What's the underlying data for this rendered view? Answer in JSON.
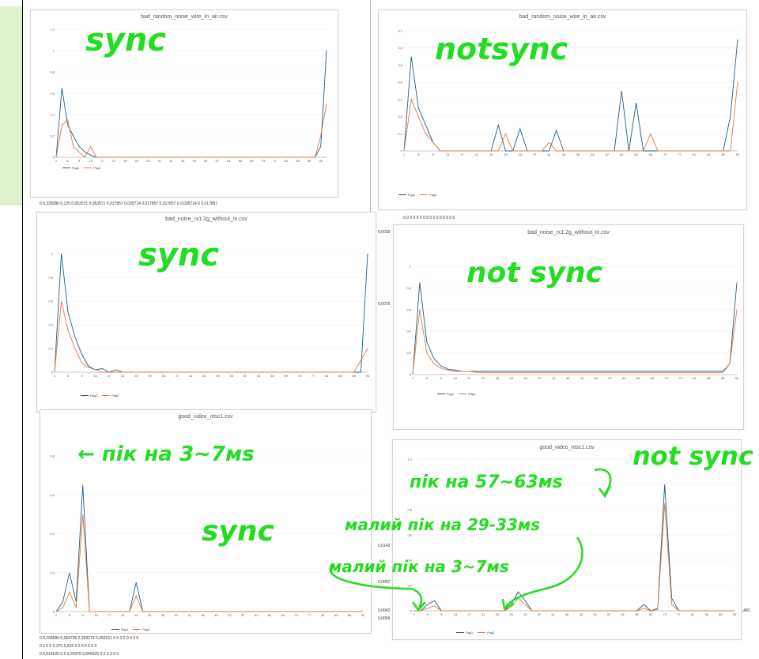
{
  "charts": [
    {
      "id": "c1",
      "title": "bad_random_noise_wire_in_air.csv",
      "yticks": [
        "1,2",
        "1",
        "0,8",
        "0,6",
        "0,4",
        "0,2",
        "0"
      ],
      "note": "sync"
    },
    {
      "id": "c2",
      "title": "bad_random_noise_wire_in_air.csv",
      "yticks": [
        "0,7",
        "0,6",
        "0,5",
        "0,4",
        "0,3",
        "0,2",
        "0,1",
        "0"
      ],
      "note": "not sync"
    },
    {
      "id": "c3",
      "title": "bad_noise_rx1.2g_without_tx.csv",
      "yticks": [
        "1",
        "0,8",
        "0,6",
        "0,4",
        "0,2",
        "0"
      ],
      "note": "sync"
    },
    {
      "id": "c4",
      "title": "bad_noise_rx1.2g_without_tx.csv",
      "yticks": [
        "1",
        "0,8",
        "0,6",
        "0,4",
        "0,2",
        "0"
      ],
      "note": "not sync"
    },
    {
      "id": "c5",
      "title": "good_video_ntsc1.csv",
      "yticks": [
        "0,8",
        "0,6",
        "0,4",
        "0,2",
        "0"
      ],
      "note": "sync"
    },
    {
      "id": "c6",
      "title": "good_video_ntsc1.csv",
      "yticks": [
        "1,2",
        "1",
        "0,8",
        "0,6",
        "0,4",
        "0,2",
        "0"
      ],
      "note": "not sync"
    }
  ],
  "annotations": {
    "a1": "sync",
    "a2": "notsync",
    "a3": "sync",
    "a4": "not sync",
    "a5": "← пік на 3~7мs",
    "a6": "sync",
    "a7": "not sync",
    "a8": "пік на 57~63мs",
    "a9": "малий пік на 29-33мs",
    "a10": "малий пік на 3~7мs"
  },
  "cells": {
    "r1": "0   0,339286     0,125   0,053571   0,053571   0,017857   0,035714   0,017857   0,017857        0   0,035714       0   0,017857",
    "r2": "0        0        0        0        0        0        0        0        0        0        0        0        0        0        0        0",
    "r3": "0   0,166589   0,054795   0,269274   0,493151        0        0        0        0        0        0        0        0",
    "r4": "0        0        0        0   0,375    0,625        0        0        0        0        0        0        0",
    "r5": "0   0,015625        0        0   0,34375   0,640625        0        0        0        0        0        0",
    "side1": "0,0039",
    "side2": "0,0079",
    "side3": "0,0142",
    "side4": "0,0097",
    "side5": "0,0042",
    "side6": "0,0009",
    "side7": "1,481"
  },
  "chart_data": [
    {
      "type": "line",
      "title": "bad_random_noise_wire_in_air.csv",
      "ylim": [
        0,
        1.2
      ],
      "series": [
        {
          "name": "Ряд1",
          "values": [
            0,
            0.65,
            0.3,
            0.2,
            0.1,
            0.05,
            0.02,
            0,
            0,
            0,
            0,
            0,
            0,
            0,
            0,
            0,
            0,
            0,
            0,
            0,
            0,
            0,
            0,
            0,
            0,
            0,
            0,
            0,
            0,
            0,
            0,
            0,
            0,
            0,
            0,
            0,
            0,
            0,
            0,
            0,
            0,
            0,
            0,
            0,
            0,
            0,
            0.1,
            1
          ]
        },
        {
          "name": "Ряд2",
          "values": [
            0,
            0.3,
            0.35,
            0.1,
            0.05,
            0,
            0.1,
            0,
            0,
            0,
            0,
            0,
            0,
            0,
            0,
            0,
            0,
            0,
            0,
            0,
            0,
            0,
            0,
            0,
            0,
            0,
            0,
            0,
            0,
            0,
            0,
            0,
            0,
            0,
            0,
            0,
            0,
            0,
            0,
            0,
            0,
            0,
            0,
            0,
            0,
            0,
            0.2,
            0.5
          ]
        }
      ]
    },
    {
      "type": "line",
      "title": "bad_random_noise_wire_in_air.csv",
      "ylim": [
        0,
        0.7
      ],
      "series": [
        {
          "name": "Ряд1",
          "values": [
            0,
            0.55,
            0.25,
            0.15,
            0.05,
            0,
            0,
            0,
            0,
            0,
            0,
            0,
            0,
            0.15,
            0,
            0,
            0.13,
            0,
            0,
            0,
            0,
            0.12,
            0,
            0,
            0,
            0,
            0,
            0,
            0,
            0,
            0.35,
            0,
            0.28,
            0,
            0,
            0,
            0,
            0,
            0,
            0,
            0,
            0,
            0,
            0,
            0,
            0.2,
            0.65
          ]
        },
        {
          "name": "Ряд2",
          "values": [
            0,
            0.3,
            0.2,
            0.1,
            0.05,
            0,
            0,
            0,
            0,
            0,
            0,
            0,
            0,
            0,
            0.1,
            0,
            0,
            0,
            0,
            0,
            0.05,
            0,
            0,
            0,
            0,
            0,
            0,
            0,
            0,
            0,
            0,
            0,
            0,
            0,
            0.1,
            0,
            0,
            0,
            0,
            0,
            0,
            0,
            0,
            0,
            0,
            0,
            0.4
          ]
        }
      ]
    },
    {
      "type": "line",
      "title": "bad_noise_rx1.2g_without_tx.csv",
      "ylim": [
        0,
        1
      ],
      "series": [
        {
          "name": "Ряд1",
          "values": [
            0,
            1,
            0.5,
            0.3,
            0.15,
            0.05,
            0.02,
            0.03,
            0,
            0.02,
            0,
            0,
            0,
            0,
            0,
            0,
            0,
            0,
            0,
            0,
            0,
            0,
            0,
            0,
            0,
            0,
            0,
            0,
            0,
            0,
            0,
            0,
            0,
            0,
            0,
            0,
            0,
            0,
            0,
            0,
            0,
            0,
            0,
            0,
            0,
            0,
            1
          ]
        },
        {
          "name": "Ряд2",
          "values": [
            0,
            0.6,
            0.35,
            0.2,
            0.08,
            0.04,
            0.02,
            0,
            0,
            0,
            0,
            0,
            0,
            0,
            0,
            0,
            0,
            0,
            0,
            0,
            0,
            0,
            0,
            0,
            0,
            0,
            0,
            0,
            0,
            0,
            0,
            0,
            0,
            0,
            0,
            0,
            0,
            0,
            0,
            0,
            0,
            0,
            0,
            0,
            0,
            0.1,
            0.2
          ]
        }
      ]
    },
    {
      "type": "line",
      "title": "bad_noise_rx1.2g_without_tx.csv",
      "ylim": [
        0,
        1
      ],
      "series": [
        {
          "name": "Ряд1",
          "values": [
            0,
            0.85,
            0.3,
            0.15,
            0.08,
            0.05,
            0.04,
            0.03,
            0.03,
            0.03,
            0.03,
            0.03,
            0.03,
            0.03,
            0.03,
            0.03,
            0.03,
            0.03,
            0.03,
            0.03,
            0.03,
            0.03,
            0.03,
            0.03,
            0.03,
            0.03,
            0.03,
            0.03,
            0.03,
            0.03,
            0.03,
            0.03,
            0.03,
            0.03,
            0.03,
            0.03,
            0.03,
            0.03,
            0.03,
            0.03,
            0.03,
            0.03,
            0.03,
            0.03,
            0.03,
            0.1,
            0.85
          ]
        },
        {
          "name": "Ряд2",
          "values": [
            0,
            0.6,
            0.2,
            0.1,
            0.06,
            0.04,
            0.03,
            0.03,
            0.03,
            0.02,
            0.02,
            0.02,
            0.02,
            0.02,
            0.02,
            0.02,
            0.02,
            0.02,
            0.02,
            0.02,
            0.02,
            0.02,
            0.02,
            0.02,
            0.02,
            0.02,
            0.02,
            0.02,
            0.02,
            0.02,
            0.02,
            0.02,
            0.02,
            0.02,
            0.02,
            0.02,
            0.02,
            0.02,
            0.02,
            0.02,
            0.02,
            0.02,
            0.02,
            0.02,
            0.02,
            0.1,
            0.6
          ]
        }
      ]
    },
    {
      "type": "line",
      "title": "good_video_ntsc1.csv",
      "ylim": [
        0,
        0.8
      ],
      "series": [
        {
          "name": "Ряд1",
          "values": [
            0,
            0.05,
            0.2,
            0.05,
            0.65,
            0,
            0,
            0,
            0,
            0,
            0,
            0,
            0.15,
            0,
            0,
            0,
            0,
            0,
            0,
            0,
            0,
            0,
            0,
            0,
            0,
            0,
            0,
            0,
            0,
            0,
            0,
            0,
            0,
            0,
            0,
            0,
            0,
            0,
            0,
            0,
            0,
            0,
            0,
            0,
            0,
            0,
            0
          ]
        },
        {
          "name": "Ряд2",
          "values": [
            0,
            0.02,
            0.1,
            0.02,
            0.5,
            0,
            0,
            0,
            0,
            0,
            0,
            0,
            0.08,
            0,
            0,
            0,
            0,
            0,
            0,
            0,
            0,
            0,
            0,
            0,
            0,
            0,
            0,
            0,
            0,
            0,
            0,
            0,
            0,
            0,
            0,
            0,
            0,
            0,
            0,
            0,
            0,
            0,
            0,
            0,
            0,
            0,
            0
          ]
        }
      ]
    },
    {
      "type": "line",
      "title": "good_video_ntsc1.csv",
      "ylim": [
        0,
        1.2
      ],
      "series": [
        {
          "name": "Ряд1",
          "values": [
            0,
            0,
            0.05,
            0.08,
            0,
            0,
            0,
            0,
            0,
            0,
            0,
            0,
            0,
            0,
            0.05,
            0.15,
            0.08,
            0,
            0,
            0,
            0,
            0,
            0,
            0,
            0,
            0,
            0,
            0,
            0,
            0,
            0,
            0,
            0,
            0.05,
            0,
            0.02,
            1,
            0.1,
            0,
            0,
            0,
            0,
            0,
            0,
            0,
            0,
            0
          ]
        },
        {
          "name": "Ряд2",
          "values": [
            0,
            0,
            0.02,
            0.04,
            0,
            0,
            0,
            0,
            0,
            0,
            0,
            0,
            0,
            0,
            0.03,
            0.1,
            0.05,
            0,
            0,
            0,
            0,
            0,
            0,
            0,
            0,
            0,
            0,
            0,
            0,
            0,
            0,
            0,
            0,
            0.02,
            0,
            0.01,
            0.85,
            0.05,
            0,
            0,
            0,
            0,
            0,
            0,
            0,
            0,
            0
          ]
        }
      ]
    }
  ],
  "palette": [
    "#1f5f8b",
    "#e07b39",
    "#7f7f7f",
    "#d4a017",
    "#2f6fb3",
    "#5aa845",
    "#0b3d6b",
    "#a0522d",
    "#555555",
    "#8c6d1f",
    "#1e90ff",
    "#3cb371",
    "#6a0dad",
    "#20b2aa",
    "#8b4513"
  ]
}
